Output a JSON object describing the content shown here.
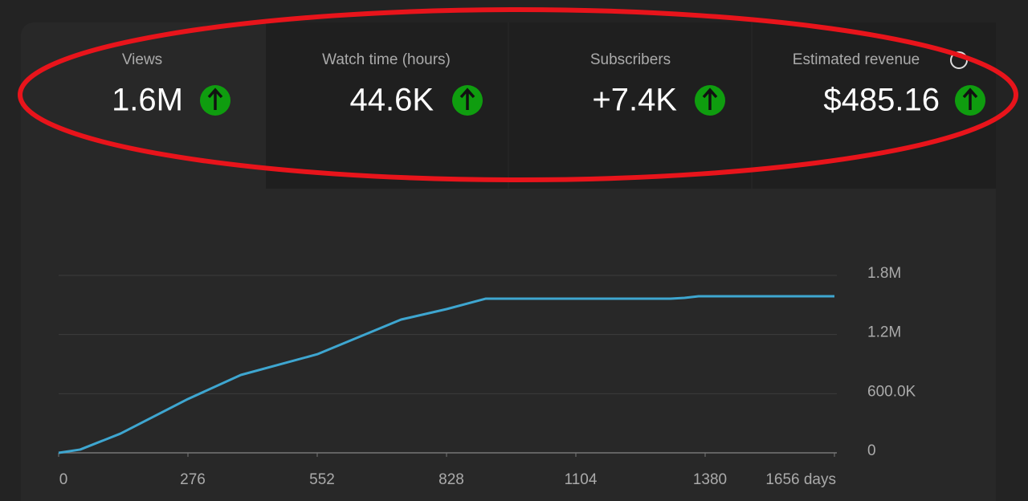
{
  "metrics": [
    {
      "label": "Views",
      "value": "1.6M"
    },
    {
      "label": "Watch time (hours)",
      "value": "44.6K"
    },
    {
      "label": "Subscribers",
      "value": "+7.4K"
    },
    {
      "label": "Estimated revenue",
      "value": "$485.16"
    }
  ],
  "chart_data": {
    "type": "line",
    "color": "#3ea6d0",
    "x": [
      0,
      46,
      132,
      276,
      389,
      552,
      731,
      828,
      912,
      1306,
      1336,
      1366,
      1656
    ],
    "values": [
      0,
      33000,
      195000,
      546000,
      790000,
      1000000,
      1352000,
      1458000,
      1564000,
      1564000,
      1572000,
      1588000,
      1588000
    ],
    "xlim": [
      0,
      1656
    ],
    "xticks": [
      0,
      276,
      552,
      828,
      1104,
      1380,
      {
        "value": 1656,
        "label": "1656 days"
      }
    ],
    "ylim": [
      0,
      1800000
    ],
    "yticks": [
      0,
      {
        "value": 600000,
        "label": "600.0K"
      },
      {
        "value": 1200000,
        "label": "1.2M"
      },
      {
        "value": 1800000,
        "label": "1.8M"
      }
    ],
    "grid": true
  }
}
